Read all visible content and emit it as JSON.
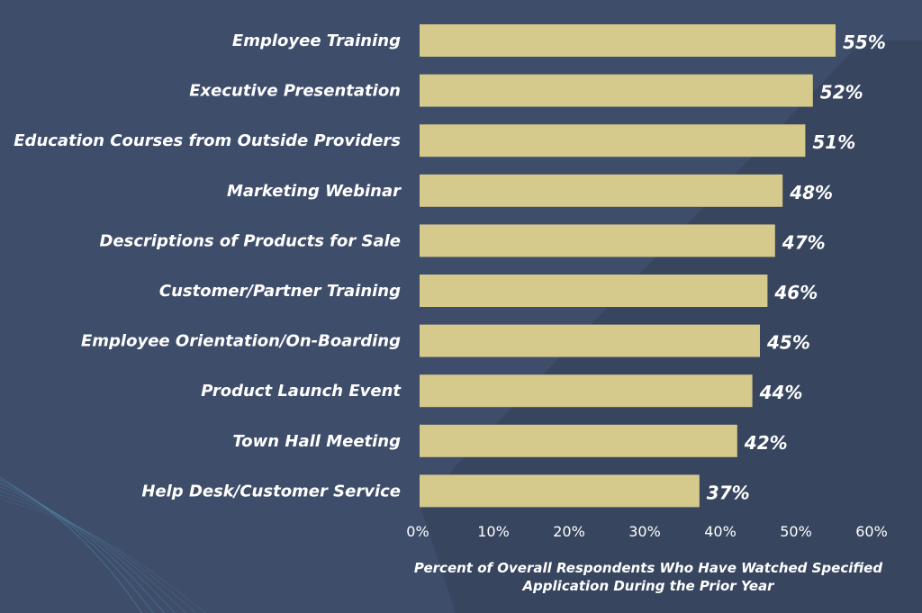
{
  "colors": {
    "background": "#3e4d6a",
    "bar": "#d6c98c",
    "text": "#ffffff",
    "swirl": "#5fa8c8"
  },
  "chart_data": {
    "type": "bar",
    "orientation": "horizontal",
    "categories": [
      "Employee Training",
      "Executive Presentation",
      "Education Courses from Outside Providers",
      "Marketing Webinar",
      "Descriptions of Products for Sale",
      "Customer/Partner Training",
      "Employee Orientation/On-Boarding",
      "Product Launch Event",
      "Town Hall Meeting",
      "Help Desk/Customer Service"
    ],
    "values": [
      55,
      52,
      51,
      48,
      47,
      46,
      45,
      44,
      42,
      37
    ],
    "value_labels": [
      "55%",
      "52%",
      "51%",
      "48%",
      "47%",
      "46%",
      "45%",
      "44%",
      "42%",
      "37%"
    ],
    "xlim": [
      0,
      60
    ],
    "x_ticks": [
      0,
      10,
      20,
      30,
      40,
      50,
      60
    ],
    "x_tick_labels": [
      "0%",
      "10%",
      "20%",
      "30%",
      "40%",
      "50%",
      "60%"
    ],
    "xlabel_lines": [
      "Percent of Overall Respondents Who Have Watched Specified",
      "Application During the Prior Year"
    ],
    "grid": false,
    "legend": "none"
  }
}
